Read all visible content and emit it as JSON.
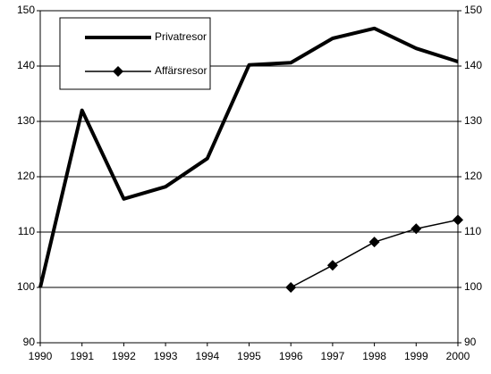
{
  "chart_data": {
    "type": "line",
    "categories": [
      "1990",
      "1991",
      "1992",
      "1993",
      "1994",
      "1995",
      "1996",
      "1997",
      "1998",
      "1999",
      "2000"
    ],
    "series": [
      {
        "name": "Privatresor",
        "color": "#000000",
        "values": [
          100,
          132,
          116,
          118.2,
          123.3,
          140.2,
          140.6,
          145,
          146.8,
          143.2,
          140.8
        ]
      },
      {
        "name": "Affärsresor",
        "color": "#000000",
        "values": [
          null,
          null,
          null,
          null,
          null,
          null,
          100,
          104,
          108.2,
          110.6,
          112.2
        ]
      }
    ],
    "ylim": [
      90,
      150
    ],
    "yticks": [
      90,
      100,
      110,
      120,
      130,
      140,
      150
    ],
    "y2lim": [
      90,
      150
    ],
    "y2ticks": [
      90,
      100,
      110,
      120,
      130,
      140,
      150
    ],
    "grid": true,
    "legend": "upper left"
  }
}
